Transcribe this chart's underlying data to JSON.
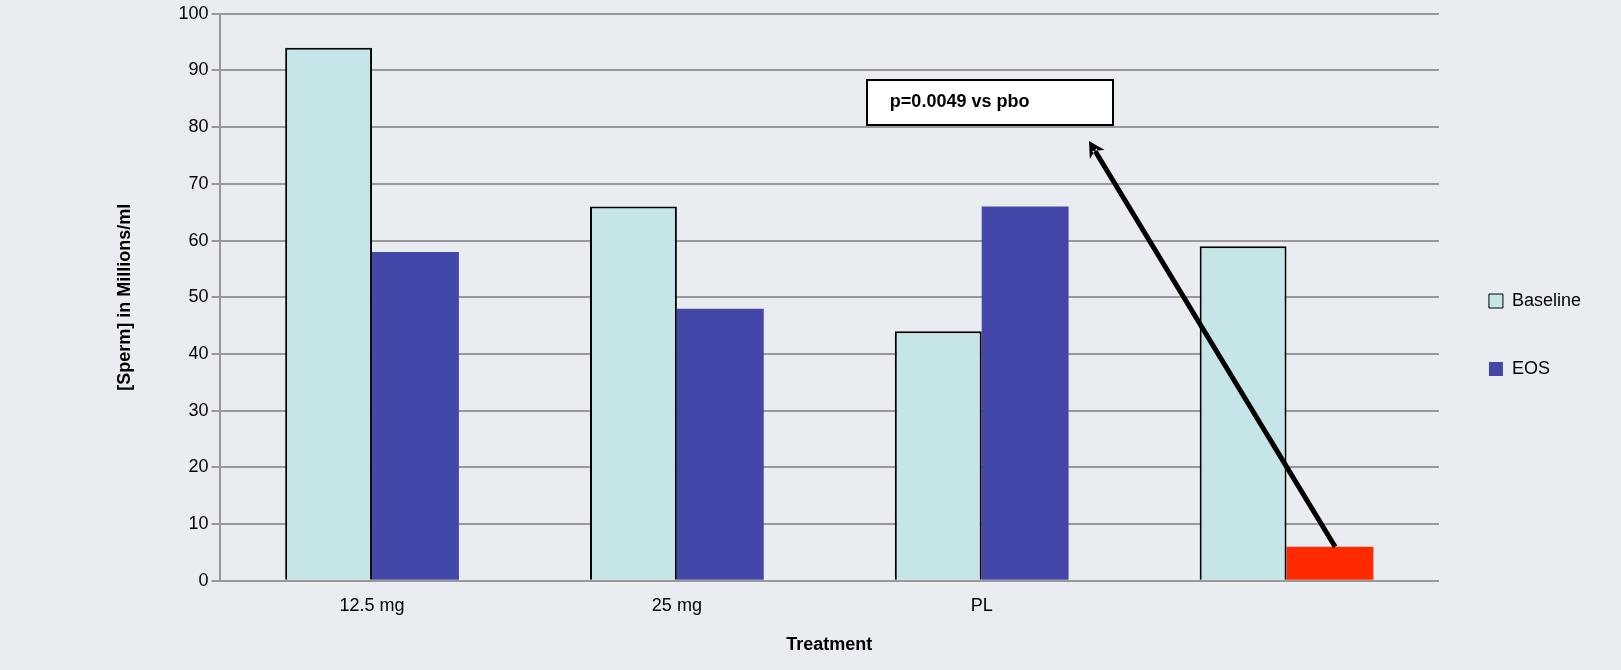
{
  "chart_data": {
    "type": "bar",
    "xlabel": "Treatment",
    "ylabel": "[Sperm] in Millions/ml",
    "categories": [
      "12.5 mg",
      "25 mg",
      "PL",
      null
    ],
    "series": [
      {
        "name": "Baseline",
        "color": "#c5e5e8",
        "values": [
          94,
          66,
          44,
          59
        ]
      },
      {
        "name": "EOS",
        "color": "#4348a8",
        "colors": [
          "#4348a8",
          "#4348a8",
          "#4348a8",
          "#ff2a00"
        ],
        "values": [
          58,
          48,
          66,
          6
        ]
      }
    ],
    "ylim": [
      0,
      100
    ],
    "yticks": [
      0,
      10,
      20,
      30,
      40,
      50,
      60,
      70,
      80,
      90,
      100
    ],
    "grid": "y",
    "legend": "right",
    "annotations": [
      "p=0.0049 vs pbo"
    ]
  }
}
